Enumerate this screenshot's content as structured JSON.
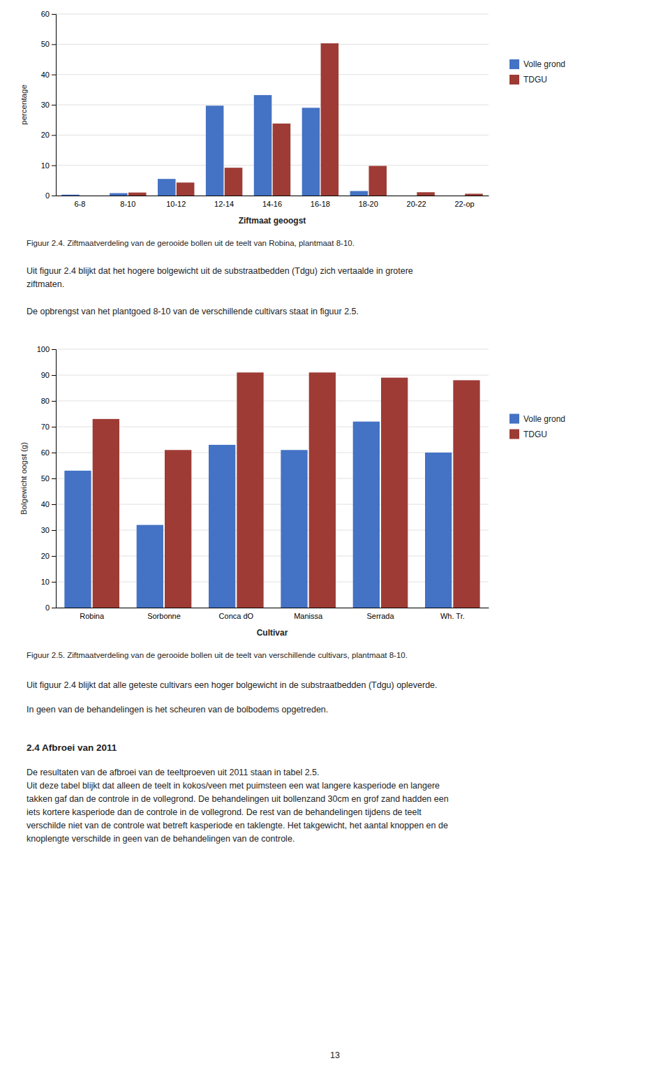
{
  "chart_data": [
    {
      "type": "bar",
      "title": "Figuur 2.4. Ziftmaatverdeling van de gerooide bollen uit de teelt van Robina, plantmaat 8-10.",
      "xlabel": "Ziftmaat geoogst",
      "ylabel": "percentage",
      "categories": [
        "6-8",
        "8-10",
        "10-12",
        "12-14",
        "14-16",
        "16-18",
        "18-20",
        "20-22",
        "22-op"
      ],
      "series": [
        {
          "name": "Volle grond",
          "color": "#4472C4",
          "values": [
            0.3,
            0.8,
            5.5,
            29.7,
            33.2,
            29.0,
            1.5,
            0.0,
            0.0
          ]
        },
        {
          "name": "TDGU",
          "color": "#9E3B35",
          "values": [
            0.0,
            1.0,
            4.3,
            9.2,
            23.8,
            50.3,
            9.8,
            1.1,
            0.6
          ]
        }
      ],
      "ylim": [
        0,
        60
      ],
      "yticks": [
        0,
        10,
        20,
        30,
        40,
        50,
        60
      ],
      "grid": true,
      "legend": "right"
    },
    {
      "type": "bar",
      "title": "Figuur 2.5. Ziftmaatverdeling van de gerooide bollen uit de teelt van verschillende cultivars, plantmaat 8-10.",
      "xlabel": "Cultivar",
      "ylabel": "Bolgewicht oogst (g)",
      "categories": [
        "Robina",
        "Sorbonne",
        "Conca dO",
        "Manissa",
        "Serrada",
        "Wh. Tr."
      ],
      "series": [
        {
          "name": "Volle grond",
          "color": "#4472C4",
          "values": [
            53,
            32,
            63,
            61,
            72,
            60
          ]
        },
        {
          "name": "TDGU",
          "color": "#9E3B35",
          "values": [
            73,
            61,
            91,
            91,
            89,
            88
          ]
        }
      ],
      "ylim": [
        0,
        100
      ],
      "yticks": [
        0,
        10,
        20,
        30,
        40,
        50,
        60,
        70,
        80,
        90,
        100
      ],
      "grid": true,
      "legend": "right"
    }
  ],
  "body_text": {
    "after_figure_1": [
      "Uit figuur 2.4 blijkt dat het hogere bolgewicht uit de substraatbedden (Tdgu) zich vertaalde in grotere\nziftmaten.",
      "De opbrengst van het plantgoed 8-10 van de verschillende cultivars staat in figuur 2.5."
    ],
    "after_figure_2": [
      "Uit figuur 2.4 blijkt dat alle geteste cultivars een hoger bolgewicht in de substraatbedden (Tdgu) opleverde.",
      "In geen van de behandelingen is het scheuren van de bolbodems opgetreden."
    ],
    "heading": "2.4 Afbroei van 2011",
    "closing": [
      "De resultaten van de afbroei van de teeltproeven uit 2011 staan in tabel 2.5.\nUit deze tabel blijkt dat alleen de teelt in kokos/veen met puimsteen een wat langere kasperiode en langere\ntakken gaf dan de controle in de vollegrond. De behandelingen uit bollenzand 30cm en grof zand hadden een\niets kortere kasperiode dan de controle in de vollegrond. De rest van de behandelingen tijdens de teelt\nverschilde niet van de controle wat betreft kasperiode en taklengte. Het takgewicht, het aantal knoppen en de\nknoplengte verschilde in geen van de behandelingen van de controle."
    ],
    "page_number": "13"
  }
}
